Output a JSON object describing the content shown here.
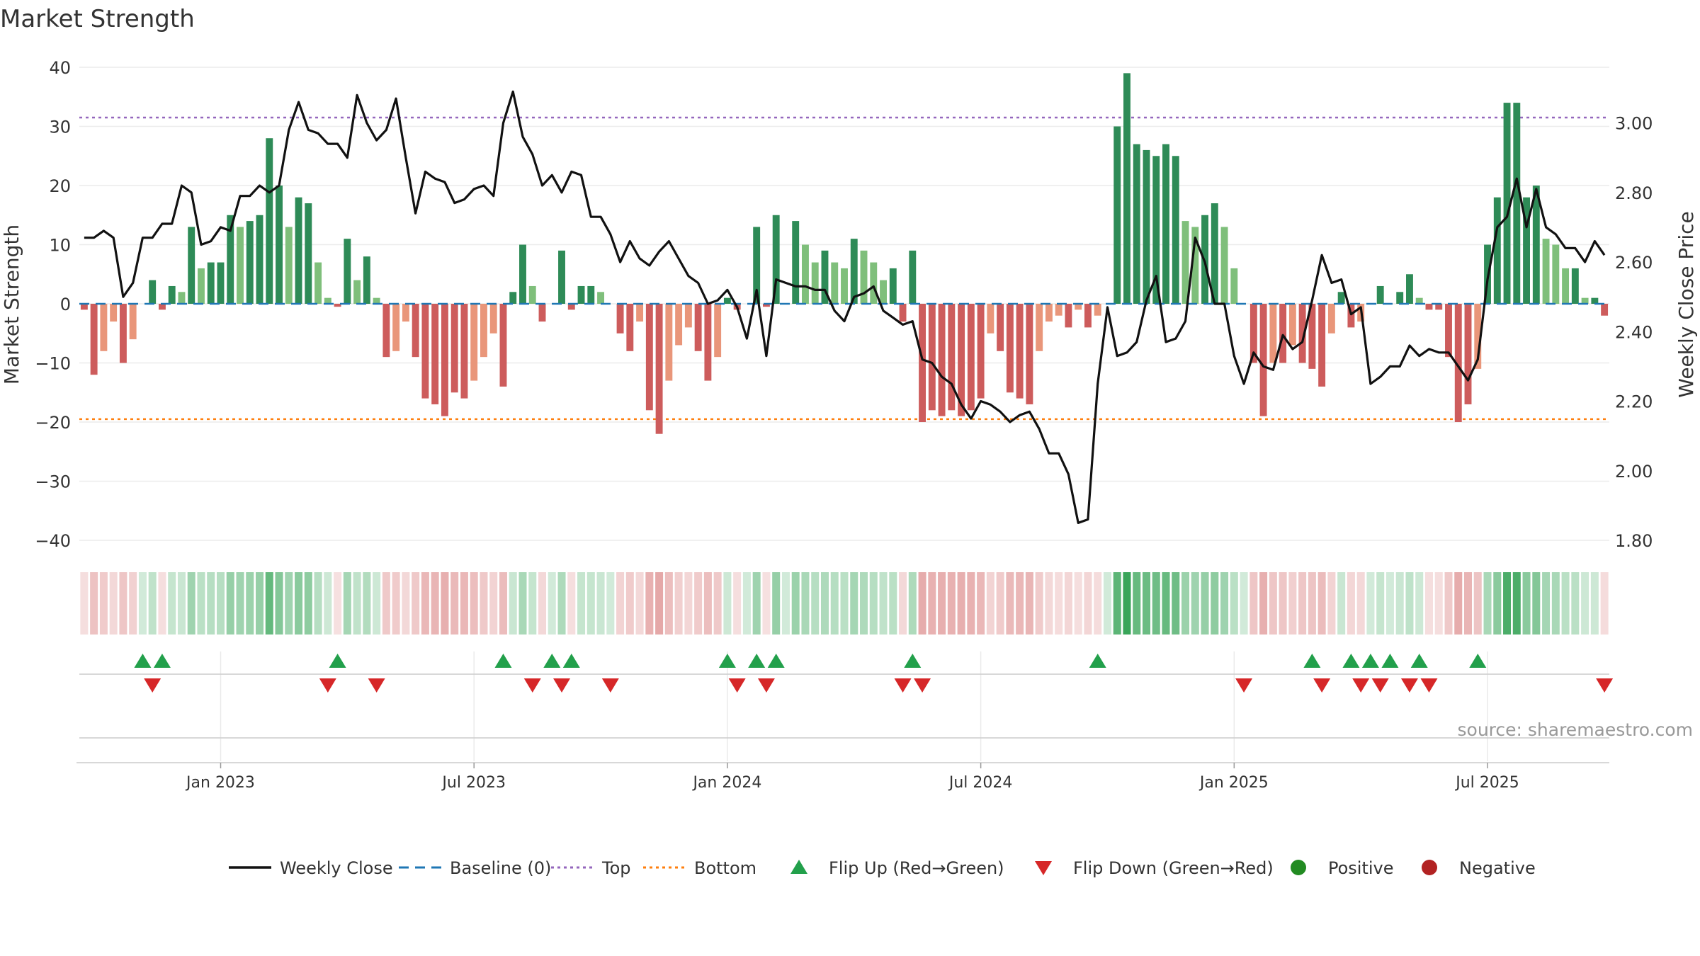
{
  "chart_data": {
    "type": "bar",
    "title": "Market Strength",
    "source": "source: sharemaestro.com",
    "ylabel_left": "Market Strength",
    "ylabel_right": "Weekly Close Price",
    "ylim_left": [
      -40,
      40
    ],
    "ylim_right": [
      1.8,
      3.16
    ],
    "yticks_left": [
      {
        "value": 40,
        "label": "40"
      },
      {
        "value": 30,
        "label": "30"
      },
      {
        "value": 20,
        "label": "20"
      },
      {
        "value": 10,
        "label": "10"
      },
      {
        "value": 0,
        "label": "0"
      },
      {
        "value": -10,
        "label": "−10"
      },
      {
        "value": -20,
        "label": "−20"
      },
      {
        "value": -30,
        "label": "−30"
      },
      {
        "value": -40,
        "label": "−40"
      }
    ],
    "yticks_right": [
      {
        "value": 3.0,
        "label": "3.00"
      },
      {
        "value": 2.8,
        "label": "2.80"
      },
      {
        "value": 2.6,
        "label": "2.60"
      },
      {
        "value": 2.4,
        "label": "2.40"
      },
      {
        "value": 2.2,
        "label": "2.20"
      },
      {
        "value": 2.0,
        "label": "2.00"
      },
      {
        "value": 1.8,
        "label": "1.80"
      }
    ],
    "xticks": [
      {
        "week": 14,
        "label": "Jan 2023"
      },
      {
        "week": 40,
        "label": "Jul 2023"
      },
      {
        "week": 66,
        "label": "Jan 2024"
      },
      {
        "week": 92,
        "label": "Jul 2024"
      },
      {
        "week": 118,
        "label": "Jan 2025"
      },
      {
        "week": 144,
        "label": "Jul 2025"
      }
    ],
    "top_threshold": 31.5,
    "bottom_threshold": -19.5,
    "baseline": 0,
    "strength": [
      -1,
      -12,
      -8,
      -3,
      -10,
      -6,
      0,
      4,
      -1,
      3,
      2,
      13,
      6,
      7,
      7,
      15,
      13,
      14,
      15,
      28,
      20,
      13,
      18,
      17,
      7,
      1,
      -0.5,
      11,
      4,
      8,
      1,
      -9,
      -8,
      -3,
      -9,
      -16,
      -17,
      -19,
      -15,
      -16,
      -13,
      -9,
      -5,
      -14,
      2,
      10,
      3,
      -3,
      0,
      9,
      -1,
      3,
      3,
      2,
      0,
      -5,
      -8,
      -3,
      -18,
      -22,
      -13,
      -7,
      -4,
      -8,
      -13,
      -9,
      1,
      -1,
      0,
      13,
      -0.5,
      15,
      0,
      14,
      10,
      7,
      9,
      7,
      6,
      11,
      9,
      7,
      4,
      6,
      -3,
      9,
      -20,
      -18,
      -19,
      -18,
      -19,
      -18,
      -16,
      -5,
      -8,
      -15,
      -16,
      -17,
      -8,
      -3,
      -2,
      -4,
      -1,
      -4,
      -2,
      0,
      30,
      39,
      27,
      26,
      25,
      27,
      25,
      14,
      13,
      15,
      17,
      13,
      6,
      0,
      -10,
      -19,
      -10,
      -10,
      -7,
      -10,
      -11,
      -14,
      -5,
      2,
      -4,
      -3,
      0,
      3,
      0,
      2,
      5,
      1,
      -1,
      -1,
      -9,
      -20,
      -17,
      -11,
      10,
      18,
      34,
      34,
      18,
      20,
      11,
      10,
      6,
      6,
      1,
      1,
      -2
    ],
    "close": [
      2.67,
      2.67,
      2.69,
      2.67,
      2.5,
      2.54,
      2.67,
      2.67,
      2.71,
      2.71,
      2.82,
      2.8,
      2.65,
      2.66,
      2.7,
      2.69,
      2.79,
      2.79,
      2.82,
      2.8,
      2.82,
      2.98,
      3.06,
      2.98,
      2.97,
      2.94,
      2.94,
      2.9,
      3.08,
      3.0,
      2.95,
      2.98,
      3.07,
      2.9,
      2.74,
      2.86,
      2.84,
      2.83,
      2.77,
      2.78,
      2.81,
      2.82,
      2.79,
      3.0,
      3.09,
      2.96,
      2.91,
      2.82,
      2.85,
      2.8,
      2.86,
      2.85,
      2.73,
      2.73,
      2.68,
      2.6,
      2.66,
      2.61,
      2.59,
      2.63,
      2.66,
      2.61,
      2.56,
      2.54,
      2.48,
      2.49,
      2.52,
      2.47,
      2.38,
      2.52,
      2.33,
      2.55,
      2.54,
      2.53,
      2.53,
      2.52,
      2.52,
      2.46,
      2.43,
      2.5,
      2.51,
      2.53,
      2.46,
      2.44,
      2.42,
      2.43,
      2.32,
      2.31,
      2.27,
      2.25,
      2.19,
      2.15,
      2.2,
      2.19,
      2.17,
      2.14,
      2.16,
      2.17,
      2.12,
      2.05,
      2.05,
      1.99,
      1.85,
      1.86,
      2.25,
      2.47,
      2.33,
      2.34,
      2.37,
      2.49,
      2.56,
      2.37,
      2.38,
      2.43,
      2.67,
      2.6,
      2.48,
      2.48,
      2.33,
      2.25,
      2.34,
      2.3,
      2.29,
      2.39,
      2.35,
      2.37,
      2.49,
      2.62,
      2.54,
      2.55,
      2.45,
      2.47,
      2.25,
      2.27,
      2.3,
      2.3,
      2.36,
      2.33,
      2.35,
      2.34,
      2.34,
      2.3,
      2.26,
      2.32,
      2.55,
      2.7,
      2.73,
      2.84,
      2.7,
      2.81,
      2.7,
      2.68,
      2.64,
      2.64,
      2.6,
      2.66,
      2.62
    ],
    "flip_up_weeks": [
      6,
      8,
      26,
      43,
      48,
      50,
      66,
      69,
      71,
      85,
      104,
      126,
      130,
      132,
      134,
      137,
      143
    ],
    "flip_down_weeks": [
      7,
      25,
      30,
      46,
      49,
      54,
      67,
      70,
      84,
      86,
      119,
      127,
      131,
      133,
      136,
      138,
      156
    ],
    "legend": [
      {
        "label": "Weekly Close",
        "kind": "line",
        "color": "#111111"
      },
      {
        "label": "Baseline (0)",
        "kind": "dash",
        "color": "#1f77b4"
      },
      {
        "label": "Top",
        "kind": "dot",
        "color": "#9467bd"
      },
      {
        "label": "Bottom",
        "kind": "dot",
        "color": "#ff7f0e"
      },
      {
        "label": "Flip Up (Red→Green)",
        "kind": "tri-up",
        "color": "#22a04b"
      },
      {
        "label": "Flip Down (Green→Red)",
        "kind": "tri-down",
        "color": "#d62728"
      },
      {
        "label": "Positive",
        "kind": "circle",
        "color": "#228b22"
      },
      {
        "label": "Negative",
        "kind": "circle",
        "color": "#b22222"
      }
    ],
    "colors": {
      "strong_pos": "#2e8b57",
      "weak_pos": "#7fbf7b",
      "strong_neg": "#cd5c5c",
      "weak_neg": "#e9967a",
      "close_line": "#111111",
      "baseline": "#1f77b4",
      "top": "#9467bd",
      "bottom": "#ff7f0e",
      "flip_up": "#22a04b",
      "flip_down": "#d62728"
    }
  }
}
